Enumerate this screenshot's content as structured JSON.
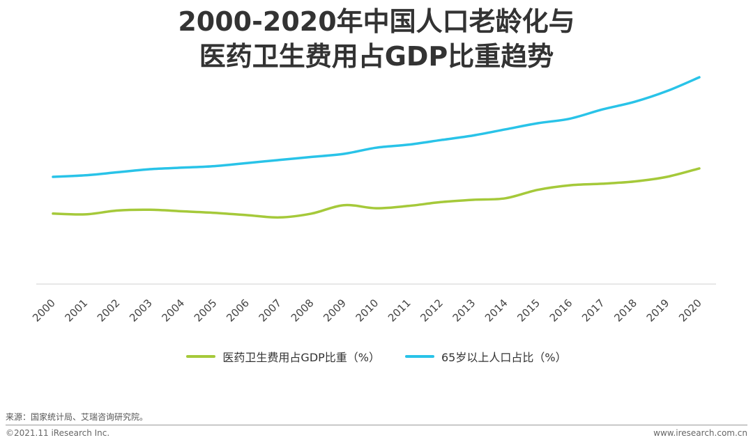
{
  "page": {
    "title_line1": "2000-2020年中国人口老龄化与",
    "title_line2": "医药卫生费用占GDP比重趋势",
    "source": "来源：国家统计局、艾瑞咨询研究院。",
    "copyright": "©2021.11 iResearch Inc.",
    "website": "www.iresearch.com.cn"
  },
  "chart_data": {
    "type": "line",
    "title": "2000-2020年中国人口老龄化与医药卫生费用占GDP比重趋势",
    "x": [
      "2000",
      "2001",
      "2002",
      "2003",
      "2004",
      "2005",
      "2006",
      "2007",
      "2008",
      "2009",
      "2010",
      "2011",
      "2012",
      "2013",
      "2014",
      "2015",
      "2016",
      "2017",
      "2018",
      "2019",
      "2020"
    ],
    "xlabel": "",
    "ylabel": "",
    "ylim": [
      0,
      14
    ],
    "grid": false,
    "legend": "bottom",
    "y_axis_labels_shown": false,
    "series": [
      {
        "name": "医药卫生费用占GDP比重（%）",
        "color": "#a5c93a",
        "values": [
          4.6,
          4.55,
          4.8,
          4.85,
          4.75,
          4.65,
          4.5,
          4.35,
          4.6,
          5.15,
          4.95,
          5.1,
          5.35,
          5.5,
          5.6,
          6.15,
          6.45,
          6.55,
          6.7,
          7.0,
          7.55
        ]
      },
      {
        "name": "65岁以上人口占比（%）",
        "color": "#29c3e8",
        "values": [
          7.0,
          7.1,
          7.3,
          7.5,
          7.6,
          7.7,
          7.9,
          8.1,
          8.3,
          8.5,
          8.9,
          9.1,
          9.4,
          9.7,
          10.1,
          10.5,
          10.8,
          11.4,
          11.9,
          12.6,
          13.5
        ]
      }
    ]
  }
}
